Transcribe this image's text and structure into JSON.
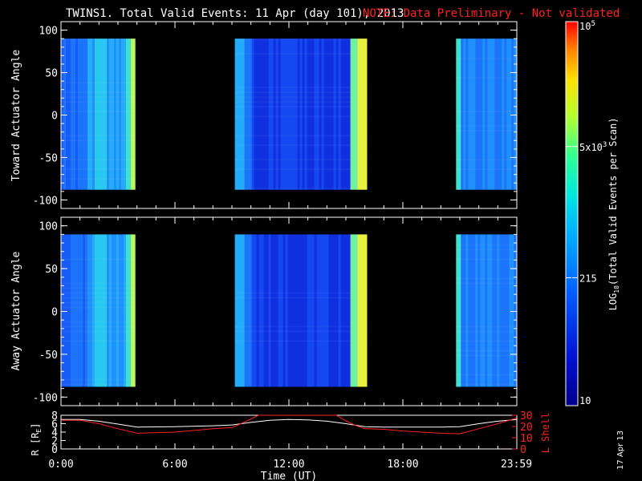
{
  "title": "TWINS1. Total Valid Events: 11 Apr (day 101), 2013",
  "note": "NOTE: Data Preliminary - Not validated",
  "colors": {
    "note": "#ff2020",
    "orbit_L": "#ff2020",
    "orbit_R": "#ffffff",
    "background": "#000000"
  },
  "stamp": "17 Apr 13",
  "chart_data": [
    {
      "type": "heatmap",
      "ylabel": "Toward Actuator Angle",
      "ylim": [
        -110,
        110
      ],
      "yticks": [
        100,
        50,
        0,
        -50,
        -100
      ],
      "xlim": [
        0,
        24
      ],
      "grid": false,
      "data_y_range": [
        -88,
        90
      ],
      "time_blocks": [
        {
          "start": 0.0,
          "end": 3.9,
          "level": "low-medium"
        },
        {
          "start": 9.15,
          "end": 16.1,
          "level": "low-medium"
        },
        {
          "start": 20.8,
          "end": 24.0,
          "level": "low"
        }
      ],
      "value_scale": "log10"
    },
    {
      "type": "heatmap",
      "ylabel": "Away Actuator Angle",
      "ylim": [
        -110,
        110
      ],
      "yticks": [
        100,
        50,
        0,
        -50,
        -100
      ],
      "xlim": [
        0,
        24
      ],
      "grid": false,
      "data_y_range": [
        -88,
        90
      ],
      "time_blocks": [
        {
          "start": 0.0,
          "end": 3.9,
          "level": "low-medium"
        },
        {
          "start": 9.15,
          "end": 16.1,
          "level": "low-medium"
        },
        {
          "start": 20.8,
          "end": 24.0,
          "level": "low"
        }
      ],
      "value_scale": "log10"
    },
    {
      "type": "line",
      "xlabel": "Time (UT)",
      "xlim": [
        0,
        24
      ],
      "xtick_labels": [
        "0:00",
        "6:00",
        "12:00",
        "18:00",
        "23:59"
      ],
      "xtick_values": [
        0,
        6,
        12,
        18,
        23.98
      ],
      "ylabel_left": "R [RE]",
      "ylabel_left_main": "R [R",
      "ylabel_left_sub": "E",
      "ylabel_left_end": "]",
      "ylim_left": [
        0,
        8
      ],
      "yticks_left": [
        0,
        2,
        4,
        6,
        8
      ],
      "ylabel_right": "L Shell",
      "ylim_right": [
        0,
        30
      ],
      "yticks_right": [
        0,
        10,
        20,
        30
      ],
      "series": [
        {
          "name": "R",
          "axis": "left",
          "x": [
            0,
            1,
            2,
            3,
            4,
            6,
            8,
            9,
            10,
            11,
            12,
            13,
            14,
            15,
            16,
            17,
            18,
            19,
            20,
            21,
            22,
            23,
            23.98
          ],
          "values": [
            7.0,
            7.0,
            6.6,
            5.9,
            5.2,
            5.3,
            5.5,
            5.7,
            6.3,
            6.8,
            7.0,
            6.9,
            6.6,
            6.0,
            5.3,
            5.2,
            5.2,
            5.2,
            5.2,
            5.3,
            6.0,
            6.6,
            7.0
          ]
        },
        {
          "name": "L Shell",
          "axis": "right",
          "x": [
            0,
            1,
            2,
            3,
            4,
            6,
            8,
            9,
            9.8,
            10.4,
            14.5,
            15,
            15.5,
            16,
            17,
            18,
            19,
            20,
            21,
            22,
            23,
            23.98
          ],
          "values": [
            25.5,
            25.5,
            22.5,
            18.0,
            14.0,
            15.0,
            18.0,
            19.0,
            25.0,
            30.0,
            30.0,
            25.0,
            21.0,
            18.0,
            17.5,
            16.0,
            15.0,
            14.0,
            13.5,
            18.0,
            22.5,
            27.5
          ]
        }
      ]
    }
  ],
  "colorbar": {
    "label": "LOG",
    "label_sub": "10",
    "label_end": "(Total Valid Events per Scan)",
    "ticks": [
      {
        "value": 10,
        "label": "10"
      },
      {
        "value": 215,
        "label": "215"
      },
      {
        "value": 5000,
        "label": "5x10",
        "sup": "3"
      },
      {
        "value": 100000,
        "label": "10",
        "sup": "5"
      }
    ],
    "vmin": 10,
    "vmax": 100000
  }
}
